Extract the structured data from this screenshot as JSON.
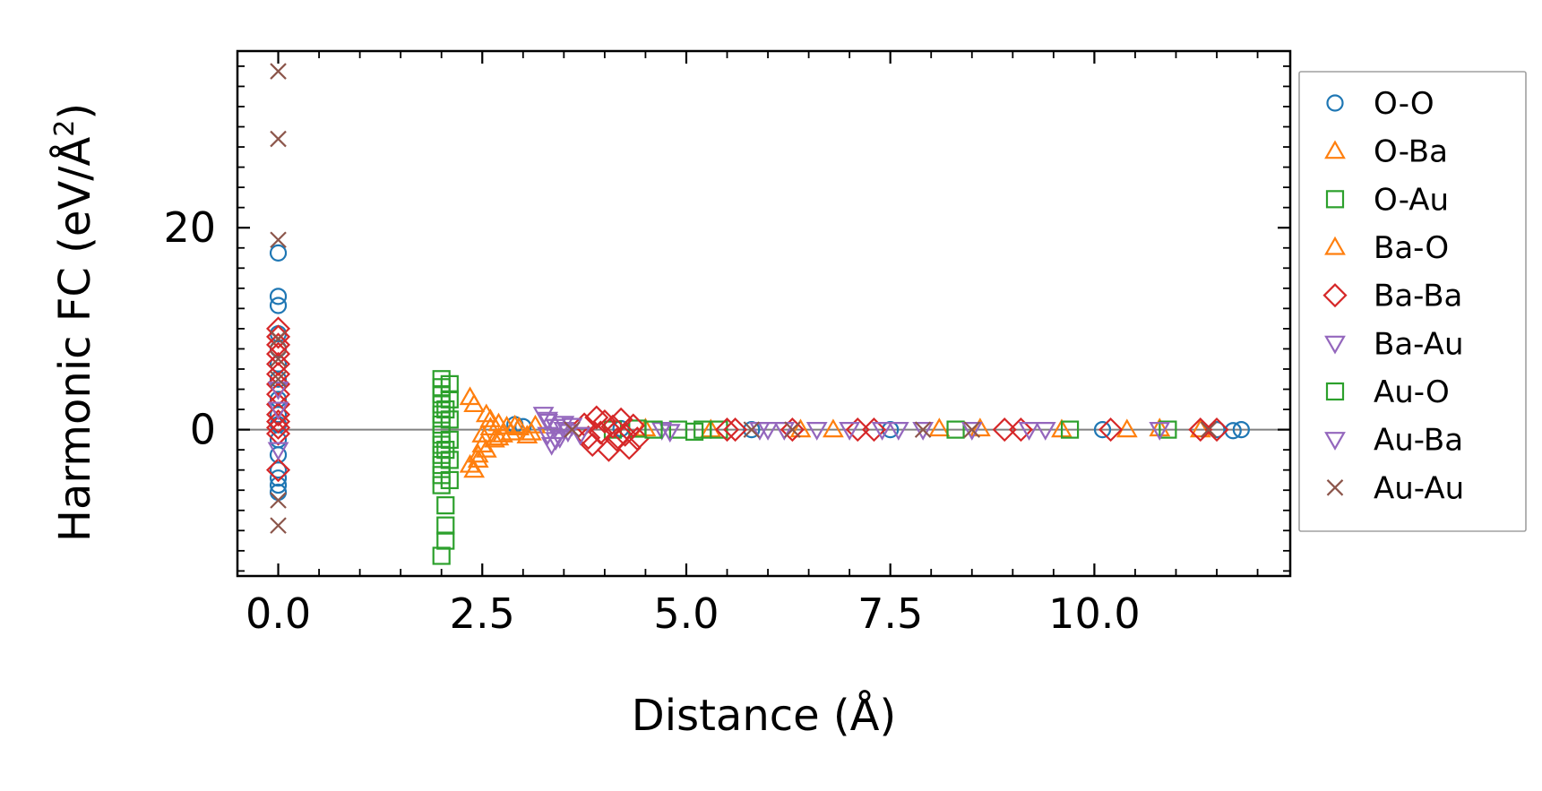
{
  "chart_data": {
    "type": "scatter",
    "title": "",
    "xlabel": "Distance (Å)",
    "ylabel": "Harmonic FC (eV/Å",
    "ylabel_superscript": "2",
    "ylabel_close": ")",
    "xlim": [
      -0.5,
      12.4
    ],
    "ylim": [
      -14.5,
      37.5
    ],
    "x_ticks": [
      0.0,
      2.5,
      5.0,
      7.5,
      10.0
    ],
    "x_tick_labels": [
      "0.0",
      "2.5",
      "5.0",
      "7.5",
      "10.0"
    ],
    "y_ticks": [
      0,
      20
    ],
    "y_tick_labels": [
      "0",
      "20"
    ],
    "zero_line": true,
    "legend_position": "right-outside",
    "series": [
      {
        "name": "O-O",
        "marker": "circle",
        "color": "#1f77b4",
        "points": [
          [
            0,
            17.5
          ],
          [
            0,
            13.2
          ],
          [
            0,
            12.3
          ],
          [
            0,
            9.5
          ],
          [
            0,
            8.0
          ],
          [
            0,
            6.5
          ],
          [
            0,
            5.0
          ],
          [
            0,
            3.0
          ],
          [
            0,
            1.5
          ],
          [
            0,
            0.5
          ],
          [
            0,
            -1.0
          ],
          [
            0,
            -2.5
          ],
          [
            0,
            -4.0
          ],
          [
            0,
            -4.8
          ],
          [
            0,
            -5.5
          ],
          [
            0,
            -6.2
          ],
          [
            2.9,
            0.5
          ],
          [
            3.0,
            0.3
          ],
          [
            4.2,
            0.1
          ],
          [
            5.8,
            0.0
          ],
          [
            7.5,
            0.0
          ],
          [
            10.1,
            0.0
          ],
          [
            11.5,
            0.0
          ],
          [
            11.7,
            -0.1
          ],
          [
            11.8,
            0.0
          ]
        ]
      },
      {
        "name": "O-Ba",
        "marker": "triangle-up",
        "color": "#ff7f0e",
        "points": [
          [
            2.35,
            3.2
          ],
          [
            2.4,
            2.5
          ],
          [
            2.35,
            -3.5
          ],
          [
            2.4,
            -4.0
          ],
          [
            2.45,
            -2.5
          ],
          [
            2.5,
            -1.5
          ],
          [
            2.5,
            -0.5
          ],
          [
            2.55,
            1.5
          ],
          [
            2.6,
            0.2
          ],
          [
            2.65,
            -1.0
          ],
          [
            2.7,
            0.6
          ],
          [
            2.75,
            -0.5
          ],
          [
            2.8,
            0.3
          ],
          [
            2.85,
            -0.3
          ],
          [
            2.95,
            0.2
          ],
          [
            3.05,
            -0.6
          ],
          [
            3.15,
            0.4
          ],
          [
            4.5,
            0.1
          ],
          [
            5.3,
            0.0
          ],
          [
            6.4,
            0.0
          ],
          [
            8.1,
            0.1
          ],
          [
            9.6,
            0.0
          ],
          [
            10.8,
            0.1
          ],
          [
            11.3,
            0.0
          ]
        ]
      },
      {
        "name": "O-Au",
        "marker": "square",
        "color": "#2ca02c",
        "points": [
          [
            2.0,
            5.0
          ],
          [
            2.0,
            4.2
          ],
          [
            2.0,
            3.5
          ],
          [
            2.0,
            2.5
          ],
          [
            2.0,
            1.5
          ],
          [
            2.0,
            0.5
          ],
          [
            2.0,
            -0.5
          ],
          [
            2.0,
            -1.5
          ],
          [
            2.0,
            -2.5
          ],
          [
            2.0,
            -3.5
          ],
          [
            2.0,
            -4.5
          ],
          [
            2.0,
            -5.5
          ],
          [
            2.05,
            -7.5
          ],
          [
            2.05,
            -9.5
          ],
          [
            2.05,
            -11.0
          ],
          [
            2.0,
            -12.5
          ],
          [
            2.1,
            4.5
          ],
          [
            2.1,
            3.0
          ],
          [
            2.1,
            1.0
          ],
          [
            2.1,
            -1.0
          ],
          [
            2.1,
            -3.0
          ],
          [
            2.1,
            -5.0
          ],
          [
            4.1,
            0.0
          ],
          [
            4.4,
            0.1
          ],
          [
            4.9,
            0.0
          ],
          [
            5.1,
            -0.2
          ],
          [
            5.4,
            0.0
          ],
          [
            8.3,
            0.0
          ],
          [
            9.7,
            0.0
          ],
          [
            10.9,
            0.0
          ]
        ]
      },
      {
        "name": "Ba-O",
        "marker": "triangle-up",
        "color": "#ff7f0e",
        "points": [
          [
            2.45,
            -3.0
          ],
          [
            2.55,
            -2.0
          ],
          [
            2.6,
            1.0
          ],
          [
            2.7,
            -0.8
          ],
          [
            2.9,
            0.4
          ],
          [
            3.1,
            -0.3
          ],
          [
            6.8,
            0.0
          ],
          [
            8.6,
            0.1
          ],
          [
            10.4,
            0.0
          ]
        ]
      },
      {
        "name": "Ba-Ba",
        "marker": "diamond",
        "color": "#d62728",
        "points": [
          [
            0,
            10.0
          ],
          [
            0,
            9.2
          ],
          [
            0,
            8.4
          ],
          [
            0,
            7.5
          ],
          [
            0,
            6.5
          ],
          [
            0,
            5.5
          ],
          [
            0,
            4.5
          ],
          [
            0,
            3.5
          ],
          [
            0,
            2.5
          ],
          [
            0,
            1.5
          ],
          [
            0,
            0.8
          ],
          [
            0,
            0.2
          ],
          [
            0,
            -0.4
          ],
          [
            0,
            -4.0
          ],
          [
            3.75,
            0.5
          ],
          [
            3.8,
            -0.8
          ],
          [
            3.85,
            -1.5
          ],
          [
            3.9,
            1.2
          ],
          [
            3.95,
            -0.3
          ],
          [
            4.0,
            0.8
          ],
          [
            4.05,
            -2.0
          ],
          [
            4.1,
            0.3
          ],
          [
            4.15,
            -1.0
          ],
          [
            4.2,
            1.0
          ],
          [
            4.25,
            -0.5
          ],
          [
            4.3,
            -1.8
          ],
          [
            4.35,
            0.4
          ],
          [
            4.4,
            -0.9
          ],
          [
            5.5,
            0.0
          ],
          [
            5.6,
            0.0
          ],
          [
            6.3,
            0.0
          ],
          [
            7.1,
            0.0
          ],
          [
            7.3,
            0.0
          ],
          [
            8.9,
            0.0
          ],
          [
            9.1,
            0.0
          ],
          [
            10.2,
            0.0
          ],
          [
            11.3,
            0.0
          ],
          [
            11.5,
            0.0
          ]
        ]
      },
      {
        "name": "Ba-Au",
        "marker": "triangle-down",
        "color": "#9467bd",
        "points": [
          [
            0,
            4.0
          ],
          [
            0,
            2.0
          ],
          [
            0,
            -2.0
          ],
          [
            3.25,
            1.5
          ],
          [
            3.3,
            0.8
          ],
          [
            3.3,
            -0.5
          ],
          [
            3.35,
            -1.5
          ],
          [
            3.4,
            0.3
          ],
          [
            3.45,
            -0.8
          ],
          [
            3.5,
            0.6
          ],
          [
            3.55,
            -0.2
          ],
          [
            3.6,
            0.4
          ],
          [
            3.7,
            -0.5
          ],
          [
            4.7,
            0.0
          ],
          [
            4.8,
            -0.2
          ],
          [
            5.9,
            0.0
          ],
          [
            6.2,
            0.0
          ],
          [
            6.6,
            0.0
          ],
          [
            7.0,
            0.0
          ],
          [
            7.4,
            0.0
          ],
          [
            7.9,
            0.0
          ],
          [
            8.5,
            0.0
          ],
          [
            9.2,
            0.0
          ],
          [
            10.8,
            0.0
          ]
        ]
      },
      {
        "name": "Au-O",
        "marker": "square",
        "color": "#2ca02c",
        "points": [
          [
            2.05,
            2.0
          ],
          [
            2.05,
            -2.0
          ],
          [
            4.6,
            0.0
          ],
          [
            5.2,
            0.0
          ]
        ]
      },
      {
        "name": "Au-Ba",
        "marker": "triangle-down",
        "color": "#9467bd",
        "points": [
          [
            3.3,
            1.0
          ],
          [
            3.4,
            -1.0
          ],
          [
            3.5,
            0.0
          ],
          [
            6.0,
            0.0
          ],
          [
            7.6,
            0.0
          ],
          [
            9.4,
            0.0
          ]
        ]
      },
      {
        "name": "Au-Au",
        "marker": "x",
        "color": "#8c564b",
        "points": [
          [
            0,
            35.5
          ],
          [
            0,
            28.8
          ],
          [
            0,
            18.8
          ],
          [
            0,
            9.0
          ],
          [
            0,
            7.0
          ],
          [
            0,
            5.0
          ],
          [
            0,
            -7.0
          ],
          [
            0,
            -9.5
          ],
          [
            3.6,
            0.0
          ],
          [
            5.8,
            0.0
          ],
          [
            6.3,
            0.0
          ],
          [
            7.9,
            0.0
          ],
          [
            8.5,
            0.0
          ],
          [
            11.4,
            0.0
          ]
        ]
      }
    ]
  }
}
